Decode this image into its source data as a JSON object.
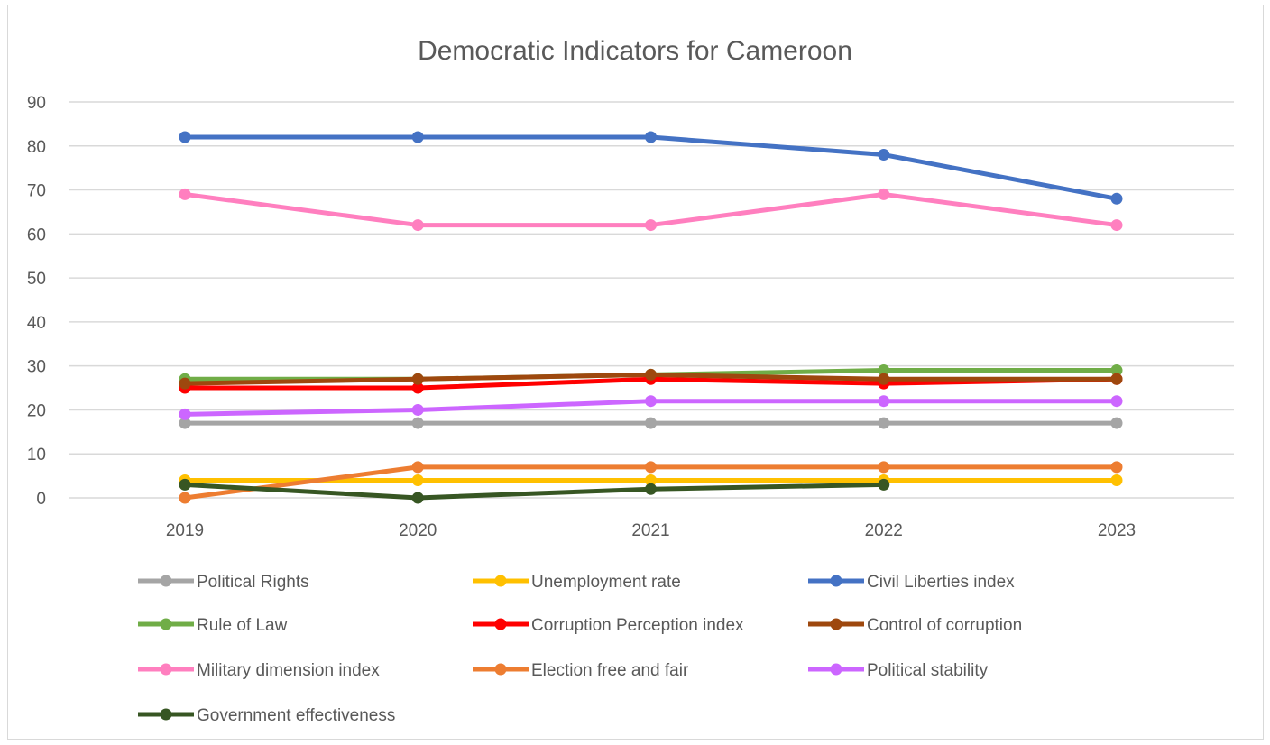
{
  "chart_data": {
    "type": "line",
    "title": "Democratic Indicators for Cameroon",
    "xlabel": "",
    "ylabel": "",
    "categories": [
      "2019",
      "2020",
      "2021",
      "2022",
      "2023"
    ],
    "ylim": [
      0,
      90
    ],
    "yticks": [
      "0",
      "10",
      "20",
      "30",
      "40",
      "50",
      "60",
      "70",
      "80",
      "90"
    ],
    "grid": true,
    "legend_position": "bottom",
    "series": [
      {
        "name": "Political Rights",
        "color": "#a5a5a5",
        "values": [
          17,
          17,
          17,
          17,
          17
        ]
      },
      {
        "name": "Unemployment rate",
        "color": "#ffc000",
        "values": [
          4,
          4,
          4,
          4,
          4
        ]
      },
      {
        "name": "Civil Liberties index",
        "color": "#4472c4",
        "values": [
          82,
          82,
          82,
          78,
          68
        ]
      },
      {
        "name": "Rule of Law",
        "color": "#70ad47",
        "values": [
          27,
          27,
          28,
          29,
          29
        ]
      },
      {
        "name": "Corruption Perception index",
        "color": "#ff0000",
        "values": [
          25,
          25,
          27,
          26,
          27
        ]
      },
      {
        "name": "Control of corruption",
        "color": "#9e480e",
        "values": [
          26,
          27,
          28,
          27,
          27
        ]
      },
      {
        "name": "Military dimension index",
        "color": "#ff7fbf",
        "values": [
          69,
          62,
          62,
          69,
          62
        ]
      },
      {
        "name": "Election free and fair",
        "color": "#ed7d31",
        "values": [
          0,
          7,
          7,
          7,
          7
        ]
      },
      {
        "name": "Political stability",
        "color": "#cc66ff",
        "values": [
          19,
          20,
          22,
          22,
          22
        ]
      },
      {
        "name": "Government effectiveness",
        "color": "#375623",
        "values": [
          3,
          0,
          2,
          3,
          null
        ]
      }
    ]
  }
}
